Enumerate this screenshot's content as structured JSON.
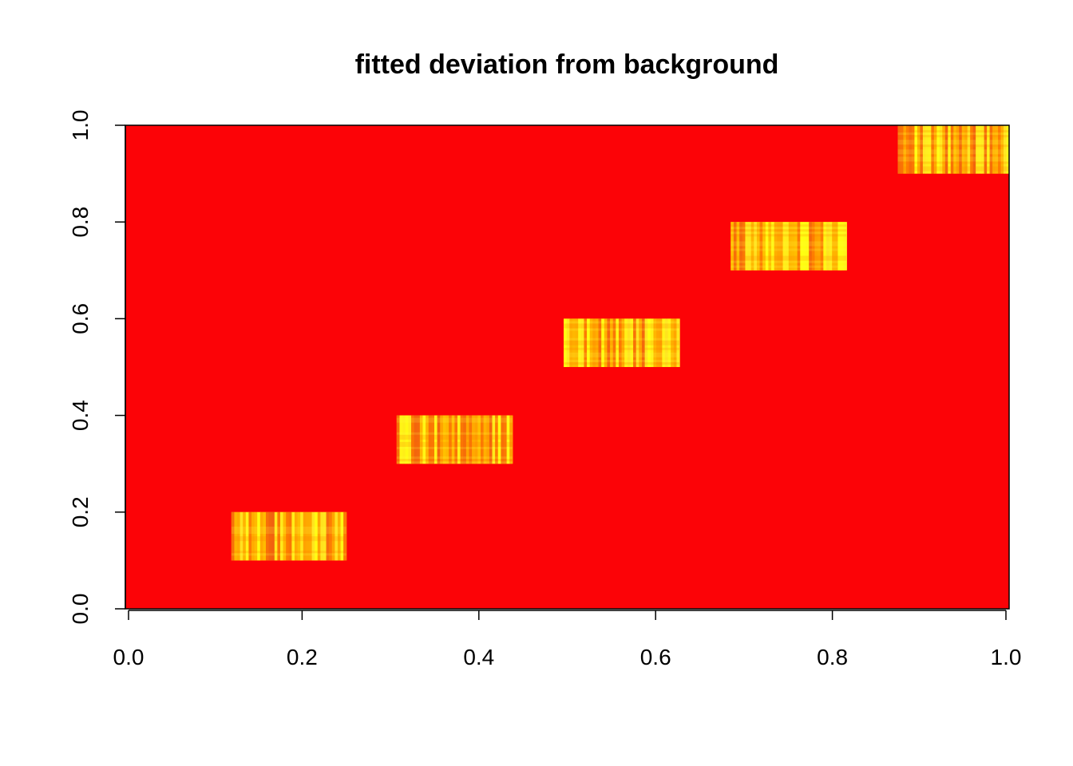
{
  "chart_data": {
    "type": "heatmap",
    "title": "fitted deviation from background",
    "xlabel": "",
    "ylabel": "",
    "xlim": [
      0.0,
      1.0
    ],
    "ylim": [
      0.0,
      1.0
    ],
    "x_ticks": [
      {
        "value": 0.0,
        "label": "0.0"
      },
      {
        "value": 0.2,
        "label": "0.2"
      },
      {
        "value": 0.4,
        "label": "0.4"
      },
      {
        "value": 0.6,
        "label": "0.6"
      },
      {
        "value": 0.8,
        "label": "0.8"
      },
      {
        "value": 1.0,
        "label": "1.0"
      }
    ],
    "y_ticks": [
      {
        "value": 0.0,
        "label": "0.0"
      },
      {
        "value": 0.2,
        "label": "0.2"
      },
      {
        "value": 0.4,
        "label": "0.4"
      },
      {
        "value": 0.6,
        "label": "0.6"
      },
      {
        "value": 0.8,
        "label": "0.8"
      },
      {
        "value": 1.0,
        "label": "1.0"
      }
    ],
    "background_color": "#fc0307",
    "colors": [
      "#ff0000",
      "#ff5500",
      "#ffaa00",
      "#ffff00"
    ],
    "blocks": [
      {
        "x": [
          0.12,
          0.25
        ],
        "y": [
          0.1,
          0.2
        ]
      },
      {
        "x": [
          0.307,
          0.438
        ],
        "y": [
          0.3,
          0.4
        ]
      },
      {
        "x": [
          0.496,
          0.627
        ],
        "y": [
          0.5,
          0.6
        ]
      },
      {
        "x": [
          0.685,
          0.816
        ],
        "y": [
          0.7,
          0.8
        ]
      },
      {
        "x": [
          0.874,
          1.0
        ],
        "y": [
          0.9,
          1.0
        ]
      }
    ]
  }
}
